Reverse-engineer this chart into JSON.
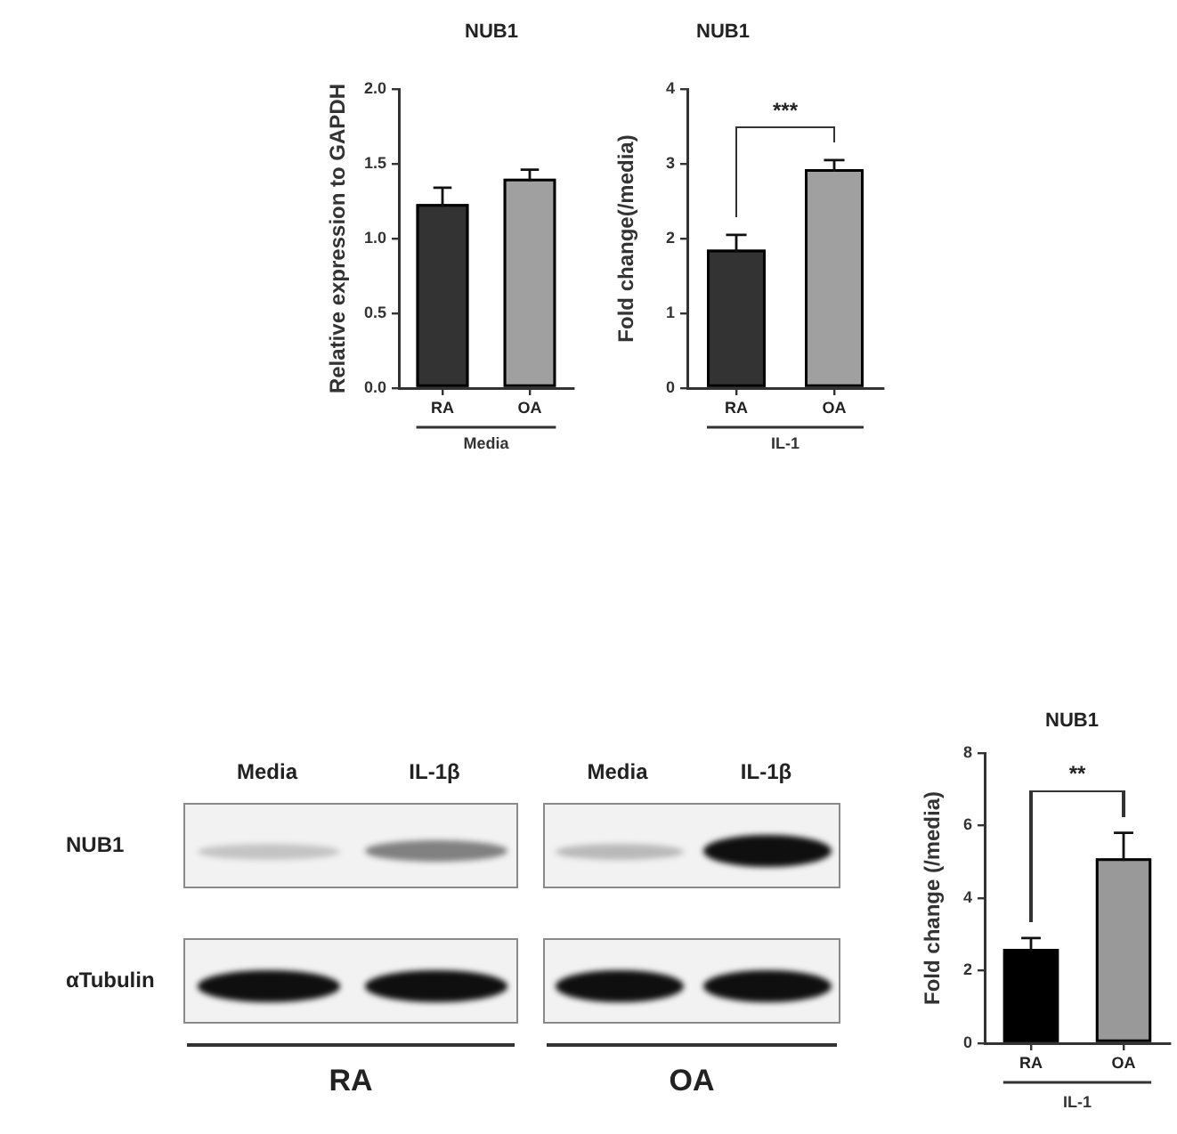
{
  "chart_data": [
    {
      "type": "bar",
      "title": "NUB1",
      "ylabel": "Relative expression to GAPDH",
      "xlabel": "Media",
      "categories": [
        "RA",
        "OA"
      ],
      "values": [
        1.23,
        1.4
      ],
      "colors": [
        "#333333",
        "#a0a0a0"
      ],
      "errors": [
        0.11,
        0.06
      ],
      "ylim": [
        0,
        2
      ],
      "yticks": [
        {
          "value": 0,
          "label": "0.0"
        },
        0.5,
        {
          "value": 1,
          "label": "1.0"
        },
        1.5,
        {
          "value": 2,
          "label": "2.0"
        }
      ]
    },
    {
      "type": "bar",
      "title": "NUB1",
      "ylabel": "Fold change(/media)",
      "xlabel": "IL-1",
      "categories": [
        "RA",
        "OA"
      ],
      "values": [
        1.85,
        2.93
      ],
      "colors": [
        "#333333",
        "#a0a0a0"
      ],
      "errors": [
        0.2,
        0.12
      ],
      "ylim": [
        0,
        4
      ],
      "yticks": [
        0,
        1,
        2,
        3,
        4
      ],
      "annotations": [
        "***"
      ]
    },
    {
      "type": "other",
      "categories": [
        "Media",
        "IL-1β",
        "Media",
        "IL-1β"
      ],
      "y_categories": [
        "NUB1",
        "αTubulin"
      ],
      "annotations": [
        "RA",
        "OA"
      ]
    },
    {
      "type": "bar",
      "title": "NUB1",
      "ylabel": "Fold change (/media)",
      "xlabel": "IL-1",
      "categories": [
        "RA",
        "OA"
      ],
      "values": [
        2.6,
        5.1
      ],
      "colors": [
        "#000000",
        "#999999"
      ],
      "errors": [
        0.3,
        0.7
      ],
      "ylim": [
        0,
        8
      ],
      "yticks": [
        0,
        2,
        4,
        6,
        8
      ],
      "annotations": [
        "**"
      ]
    }
  ]
}
